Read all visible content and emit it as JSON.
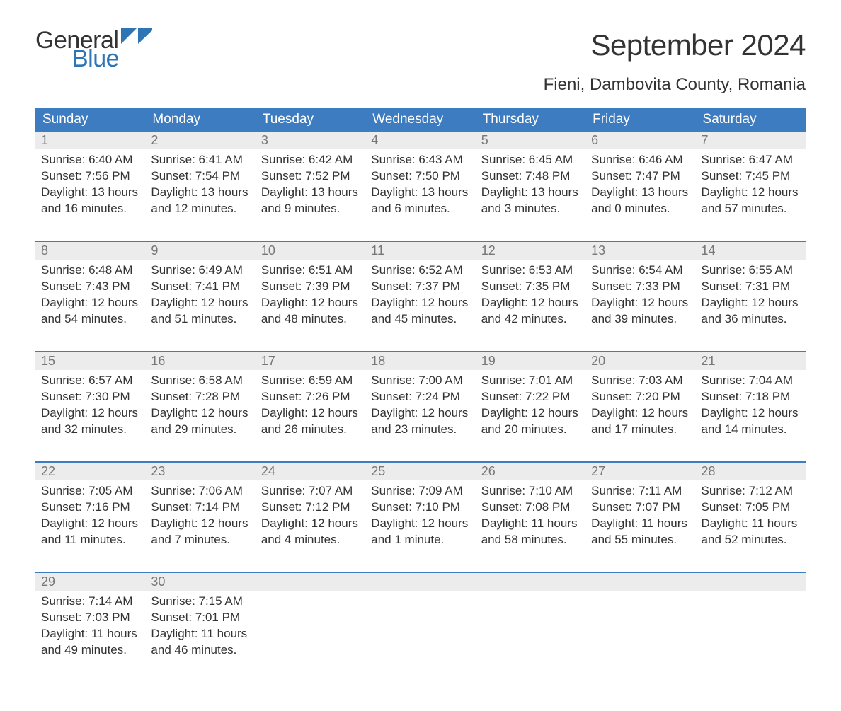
{
  "brand": {
    "word1": "General",
    "word2": "Blue",
    "logo_color_dark": "#333333",
    "logo_color_blue": "#2e75b6",
    "flag_color": "#2e75b6"
  },
  "title": "September 2024",
  "location": "Fieni, Dambovita County, Romania",
  "colors": {
    "header_bg": "#3d7cc0",
    "header_text": "#ffffff",
    "daynum_bg": "#ececec",
    "daynum_text": "#777777",
    "body_text": "#333333",
    "page_bg": "#ffffff"
  },
  "daysOfWeek": [
    "Sunday",
    "Monday",
    "Tuesday",
    "Wednesday",
    "Thursday",
    "Friday",
    "Saturday"
  ],
  "weeks": [
    [
      {
        "n": "1",
        "sunrise": "Sunrise: 6:40 AM",
        "sunset": "Sunset: 7:56 PM",
        "dl1": "Daylight: 13 hours",
        "dl2": "and 16 minutes."
      },
      {
        "n": "2",
        "sunrise": "Sunrise: 6:41 AM",
        "sunset": "Sunset: 7:54 PM",
        "dl1": "Daylight: 13 hours",
        "dl2": "and 12 minutes."
      },
      {
        "n": "3",
        "sunrise": "Sunrise: 6:42 AM",
        "sunset": "Sunset: 7:52 PM",
        "dl1": "Daylight: 13 hours",
        "dl2": "and 9 minutes."
      },
      {
        "n": "4",
        "sunrise": "Sunrise: 6:43 AM",
        "sunset": "Sunset: 7:50 PM",
        "dl1": "Daylight: 13 hours",
        "dl2": "and 6 minutes."
      },
      {
        "n": "5",
        "sunrise": "Sunrise: 6:45 AM",
        "sunset": "Sunset: 7:48 PM",
        "dl1": "Daylight: 13 hours",
        "dl2": "and 3 minutes."
      },
      {
        "n": "6",
        "sunrise": "Sunrise: 6:46 AM",
        "sunset": "Sunset: 7:47 PM",
        "dl1": "Daylight: 13 hours",
        "dl2": "and 0 minutes."
      },
      {
        "n": "7",
        "sunrise": "Sunrise: 6:47 AM",
        "sunset": "Sunset: 7:45 PM",
        "dl1": "Daylight: 12 hours",
        "dl2": "and 57 minutes."
      }
    ],
    [
      {
        "n": "8",
        "sunrise": "Sunrise: 6:48 AM",
        "sunset": "Sunset: 7:43 PM",
        "dl1": "Daylight: 12 hours",
        "dl2": "and 54 minutes."
      },
      {
        "n": "9",
        "sunrise": "Sunrise: 6:49 AM",
        "sunset": "Sunset: 7:41 PM",
        "dl1": "Daylight: 12 hours",
        "dl2": "and 51 minutes."
      },
      {
        "n": "10",
        "sunrise": "Sunrise: 6:51 AM",
        "sunset": "Sunset: 7:39 PM",
        "dl1": "Daylight: 12 hours",
        "dl2": "and 48 minutes."
      },
      {
        "n": "11",
        "sunrise": "Sunrise: 6:52 AM",
        "sunset": "Sunset: 7:37 PM",
        "dl1": "Daylight: 12 hours",
        "dl2": "and 45 minutes."
      },
      {
        "n": "12",
        "sunrise": "Sunrise: 6:53 AM",
        "sunset": "Sunset: 7:35 PM",
        "dl1": "Daylight: 12 hours",
        "dl2": "and 42 minutes."
      },
      {
        "n": "13",
        "sunrise": "Sunrise: 6:54 AM",
        "sunset": "Sunset: 7:33 PM",
        "dl1": "Daylight: 12 hours",
        "dl2": "and 39 minutes."
      },
      {
        "n": "14",
        "sunrise": "Sunrise: 6:55 AM",
        "sunset": "Sunset: 7:31 PM",
        "dl1": "Daylight: 12 hours",
        "dl2": "and 36 minutes."
      }
    ],
    [
      {
        "n": "15",
        "sunrise": "Sunrise: 6:57 AM",
        "sunset": "Sunset: 7:30 PM",
        "dl1": "Daylight: 12 hours",
        "dl2": "and 32 minutes."
      },
      {
        "n": "16",
        "sunrise": "Sunrise: 6:58 AM",
        "sunset": "Sunset: 7:28 PM",
        "dl1": "Daylight: 12 hours",
        "dl2": "and 29 minutes."
      },
      {
        "n": "17",
        "sunrise": "Sunrise: 6:59 AM",
        "sunset": "Sunset: 7:26 PM",
        "dl1": "Daylight: 12 hours",
        "dl2": "and 26 minutes."
      },
      {
        "n": "18",
        "sunrise": "Sunrise: 7:00 AM",
        "sunset": "Sunset: 7:24 PM",
        "dl1": "Daylight: 12 hours",
        "dl2": "and 23 minutes."
      },
      {
        "n": "19",
        "sunrise": "Sunrise: 7:01 AM",
        "sunset": "Sunset: 7:22 PM",
        "dl1": "Daylight: 12 hours",
        "dl2": "and 20 minutes."
      },
      {
        "n": "20",
        "sunrise": "Sunrise: 7:03 AM",
        "sunset": "Sunset: 7:20 PM",
        "dl1": "Daylight: 12 hours",
        "dl2": "and 17 minutes."
      },
      {
        "n": "21",
        "sunrise": "Sunrise: 7:04 AM",
        "sunset": "Sunset: 7:18 PM",
        "dl1": "Daylight: 12 hours",
        "dl2": "and 14 minutes."
      }
    ],
    [
      {
        "n": "22",
        "sunrise": "Sunrise: 7:05 AM",
        "sunset": "Sunset: 7:16 PM",
        "dl1": "Daylight: 12 hours",
        "dl2": "and 11 minutes."
      },
      {
        "n": "23",
        "sunrise": "Sunrise: 7:06 AM",
        "sunset": "Sunset: 7:14 PM",
        "dl1": "Daylight: 12 hours",
        "dl2": "and 7 minutes."
      },
      {
        "n": "24",
        "sunrise": "Sunrise: 7:07 AM",
        "sunset": "Sunset: 7:12 PM",
        "dl1": "Daylight: 12 hours",
        "dl2": "and 4 minutes."
      },
      {
        "n": "25",
        "sunrise": "Sunrise: 7:09 AM",
        "sunset": "Sunset: 7:10 PM",
        "dl1": "Daylight: 12 hours",
        "dl2": "and 1 minute."
      },
      {
        "n": "26",
        "sunrise": "Sunrise: 7:10 AM",
        "sunset": "Sunset: 7:08 PM",
        "dl1": "Daylight: 11 hours",
        "dl2": "and 58 minutes."
      },
      {
        "n": "27",
        "sunrise": "Sunrise: 7:11 AM",
        "sunset": "Sunset: 7:07 PM",
        "dl1": "Daylight: 11 hours",
        "dl2": "and 55 minutes."
      },
      {
        "n": "28",
        "sunrise": "Sunrise: 7:12 AM",
        "sunset": "Sunset: 7:05 PM",
        "dl1": "Daylight: 11 hours",
        "dl2": "and 52 minutes."
      }
    ],
    [
      {
        "n": "29",
        "sunrise": "Sunrise: 7:14 AM",
        "sunset": "Sunset: 7:03 PM",
        "dl1": "Daylight: 11 hours",
        "dl2": "and 49 minutes."
      },
      {
        "n": "30",
        "sunrise": "Sunrise: 7:15 AM",
        "sunset": "Sunset: 7:01 PM",
        "dl1": "Daylight: 11 hours",
        "dl2": "and 46 minutes."
      },
      null,
      null,
      null,
      null,
      null
    ]
  ]
}
